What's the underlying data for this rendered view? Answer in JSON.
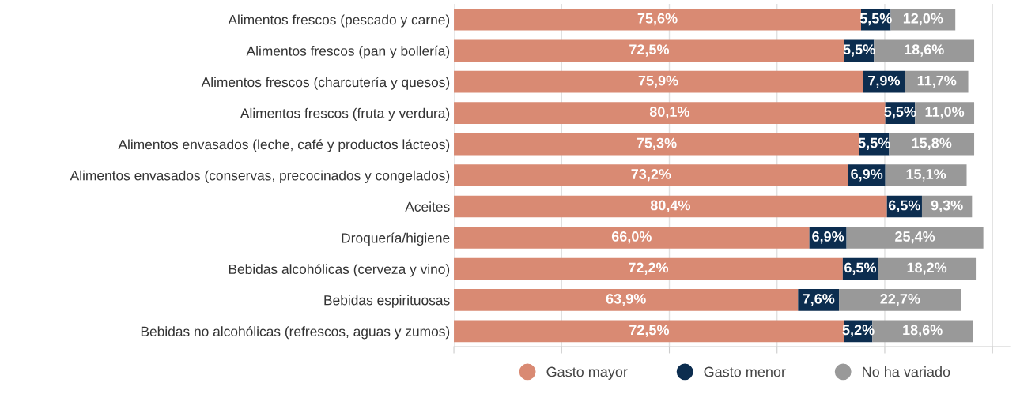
{
  "chart_data": {
    "type": "bar",
    "orientation": "horizontal",
    "stacked": true,
    "grid": "x",
    "legend": "bottom",
    "tick_labels": "y",
    "categories": [
      "Alimentos frescos (pescado y carne)",
      "Alimentos frescos (pan y bollería)",
      "Alimentos frescos (charcutería y quesos)",
      "Alimentos frescos (fruta y verdura)",
      "Alimentos envasados (leche, café y productos lácteos)",
      "Alimentos envasados (conservas, precocinados y congelados)",
      "Aceites",
      "Droquería/higiene",
      "Bebidas alcohólicas (cerveza y vino)",
      "Bebidas espirituosas",
      "Bebidas no alcohólicas (refrescos, aguas y zumos)"
    ],
    "series": [
      {
        "name": "Gasto mayor",
        "color": "#d98a73",
        "values": [
          75.6,
          72.5,
          75.9,
          80.1,
          75.3,
          73.2,
          80.4,
          66.0,
          72.2,
          63.9,
          72.5
        ],
        "value_labels": [
          "75,6%",
          "72,5%",
          "75,9%",
          "80,1%",
          "75,3%",
          "73,2%",
          "80,4%",
          "66,0%",
          "72,2%",
          "63,9%",
          "72,5%"
        ]
      },
      {
        "name": "Gasto menor",
        "color": "#0c2d4f",
        "values": [
          5.5,
          5.5,
          7.9,
          5.5,
          5.5,
          6.9,
          6.5,
          6.9,
          6.5,
          7.6,
          5.2
        ],
        "value_labels": [
          "5,5%",
          "5,5%",
          "7,9%",
          "5,5%",
          "5,5%",
          "6,9%",
          "6,5%",
          "6,9%",
          "6,5%",
          "7,6%",
          "5,2%"
        ]
      },
      {
        "name": "No ha variado",
        "color": "#999999",
        "values": [
          12.0,
          18.6,
          11.7,
          11.0,
          15.8,
          15.1,
          9.3,
          25.4,
          18.2,
          22.7,
          18.6
        ],
        "value_labels": [
          "12,0%",
          "18,6%",
          "11,7%",
          "11,0%",
          "15,8%",
          "15,1%",
          "9,3%",
          "25,4%",
          "18,2%",
          "22,7%",
          "18,6%"
        ]
      }
    ]
  }
}
